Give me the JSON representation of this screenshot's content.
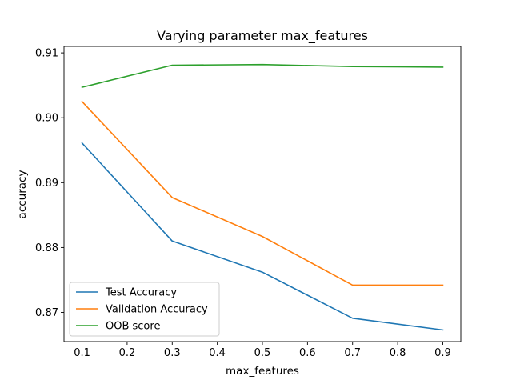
{
  "chart_data": {
    "type": "line",
    "title": "Varying parameter max_features",
    "xlabel": "max_features",
    "ylabel": "accuracy",
    "x": [
      0.1,
      0.3,
      0.5,
      0.7,
      0.9
    ],
    "xlim": [
      0.06,
      0.94
    ],
    "ylim": [
      0.8655,
      0.911
    ],
    "xticks": [
      0.1,
      0.2,
      0.3,
      0.4,
      0.5,
      0.6,
      0.7,
      0.8,
      0.9
    ],
    "xtick_labels": [
      "0.1",
      "0.2",
      "0.3",
      "0.4",
      "0.5",
      "0.6",
      "0.7",
      "0.8",
      "0.9"
    ],
    "yticks": [
      0.87,
      0.88,
      0.89,
      0.9,
      0.91
    ],
    "ytick_labels": [
      "0.87",
      "0.88",
      "0.89",
      "0.90",
      "0.91"
    ],
    "grid": false,
    "legend_position": "lower-left",
    "series": [
      {
        "name": "Test Accuracy",
        "color": "#1f77b4",
        "values": [
          0.8961,
          0.881,
          0.8762,
          0.8691,
          0.8673
        ]
      },
      {
        "name": "Validation Accuracy",
        "color": "#ff7f0e",
        "values": [
          0.9025,
          0.8877,
          0.8817,
          0.8742,
          0.8742
        ]
      },
      {
        "name": "OOB score",
        "color": "#2ca02c",
        "values": [
          0.9047,
          0.9081,
          0.9082,
          0.9079,
          0.9078
        ]
      }
    ]
  }
}
